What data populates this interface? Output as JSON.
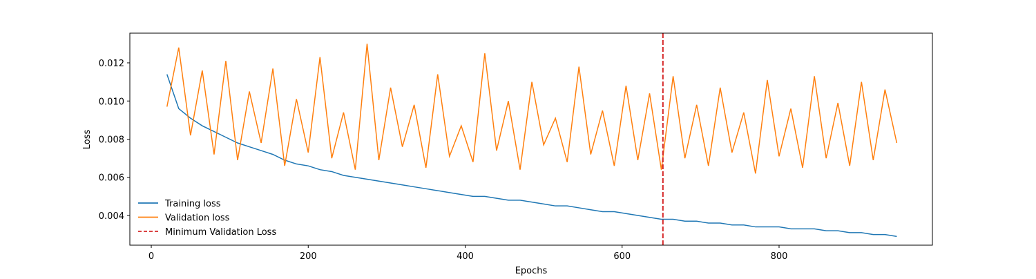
{
  "chart_data": {
    "type": "line",
    "xlabel": "Epochs",
    "ylabel": "Loss",
    "x": [
      20,
      35,
      50,
      65,
      80,
      95,
      110,
      125,
      140,
      155,
      170,
      185,
      200,
      215,
      230,
      245,
      260,
      275,
      290,
      305,
      320,
      335,
      350,
      365,
      380,
      395,
      410,
      425,
      440,
      455,
      470,
      485,
      500,
      515,
      530,
      545,
      560,
      575,
      590,
      605,
      620,
      635,
      650,
      665,
      680,
      695,
      710,
      725,
      740,
      755,
      770,
      785,
      800,
      815,
      830,
      845,
      860,
      875,
      890,
      905,
      920,
      935,
      950
    ],
    "series": [
      {
        "name": "Training loss",
        "color": "#1f77b4",
        "values": [
          0.0114,
          0.0096,
          0.0091,
          0.0087,
          0.0084,
          0.0081,
          0.0078,
          0.0076,
          0.0074,
          0.0072,
          0.0069,
          0.0067,
          0.0066,
          0.0064,
          0.0063,
          0.0061,
          0.006,
          0.0059,
          0.0058,
          0.0057,
          0.0056,
          0.0055,
          0.0054,
          0.0053,
          0.0052,
          0.0051,
          0.005,
          0.005,
          0.0049,
          0.0048,
          0.0048,
          0.0047,
          0.0046,
          0.0045,
          0.0045,
          0.0044,
          0.0043,
          0.0042,
          0.0042,
          0.0041,
          0.004,
          0.0039,
          0.0038,
          0.0038,
          0.0037,
          0.0037,
          0.0036,
          0.0036,
          0.0035,
          0.0035,
          0.0034,
          0.0034,
          0.0034,
          0.0033,
          0.0033,
          0.0033,
          0.0032,
          0.0032,
          0.0031,
          0.0031,
          0.003,
          0.003,
          0.0029
        ]
      },
      {
        "name": "Validation loss",
        "color": "#ff7f0e",
        "values": [
          0.0097,
          0.0128,
          0.0082,
          0.0116,
          0.0072,
          0.0121,
          0.0069,
          0.0105,
          0.0078,
          0.0117,
          0.0066,
          0.0101,
          0.0073,
          0.0123,
          0.007,
          0.0094,
          0.0064,
          0.013,
          0.0069,
          0.0107,
          0.0076,
          0.0098,
          0.0065,
          0.0114,
          0.0071,
          0.0087,
          0.0068,
          0.0125,
          0.0074,
          0.01,
          0.0064,
          0.011,
          0.0077,
          0.0091,
          0.0068,
          0.0118,
          0.0072,
          0.0095,
          0.0066,
          0.0108,
          0.0069,
          0.0104,
          0.0064,
          0.0113,
          0.007,
          0.0098,
          0.0066,
          0.0107,
          0.0073,
          0.0094,
          0.0062,
          0.0111,
          0.0071,
          0.0096,
          0.0065,
          0.0113,
          0.007,
          0.0099,
          0.0066,
          0.011,
          0.0069,
          0.0106,
          0.0078
        ]
      }
    ],
    "vlines": [
      {
        "name": "Minimum Validation Loss",
        "x": 652,
        "color": "#d62728",
        "style": "dashed"
      }
    ],
    "xlim": [
      -27.3,
      995.4
    ],
    "xticks": [
      0,
      200,
      400,
      600,
      800
    ],
    "ylim": [
      0.002443,
      0.013557
    ],
    "yticks": [
      0.004,
      0.006,
      0.008,
      {
        "value": 0.01,
        "label": "0.010"
      },
      0.012
    ],
    "legend": "lower left",
    "grid": false
  }
}
